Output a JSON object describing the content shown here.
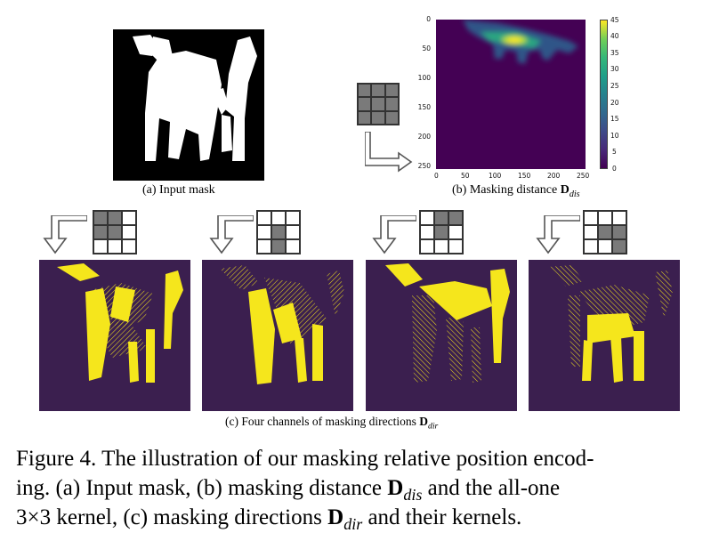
{
  "panels": {
    "a_caption": "(a) Input mask",
    "b_caption_text": "(b) Masking distance ",
    "b_caption_sym": "D",
    "b_caption_sub": "dis",
    "c_caption_text": "(c) Four channels of masking directions ",
    "c_caption_sym": "D",
    "c_caption_sub": "dir"
  },
  "heatmap": {
    "x_ticks": [
      "0",
      "50",
      "100",
      "150",
      "200",
      "250"
    ],
    "y_ticks": [
      "0",
      "50",
      "100",
      "150",
      "200",
      "250"
    ],
    "colorbar_ticks": [
      "45",
      "40",
      "35",
      "30",
      "25",
      "20",
      "15",
      "10",
      "5",
      "0"
    ],
    "colors": {
      "low": "#440154",
      "mid": "#21918c",
      "high": "#fde725"
    }
  },
  "kernels": {
    "all_one": [
      1,
      1,
      1,
      1,
      1,
      1,
      1,
      1,
      1
    ],
    "directions": [
      [
        1,
        1,
        0,
        1,
        1,
        0,
        0,
        0,
        0
      ],
      [
        0,
        0,
        0,
        1,
        1,
        0,
        1,
        1,
        0
      ],
      [
        0,
        1,
        1,
        0,
        1,
        1,
        0,
        0,
        0
      ],
      [
        0,
        0,
        0,
        0,
        1,
        1,
        0,
        1,
        1
      ]
    ]
  },
  "figure_caption": {
    "line1": "Figure 4.  The illustration of our masking relative position encod-",
    "line2_a": "ing.  (a) Input mask, (b) masking distance ",
    "line2_sym": "D",
    "line2_sub": "dis",
    "line2_b": " and the all-one",
    "line3_a": "3×3 kernel, (c) masking directions ",
    "line3_sym": "D",
    "line3_sub": "dir",
    "line3_b": " and their kernels."
  }
}
